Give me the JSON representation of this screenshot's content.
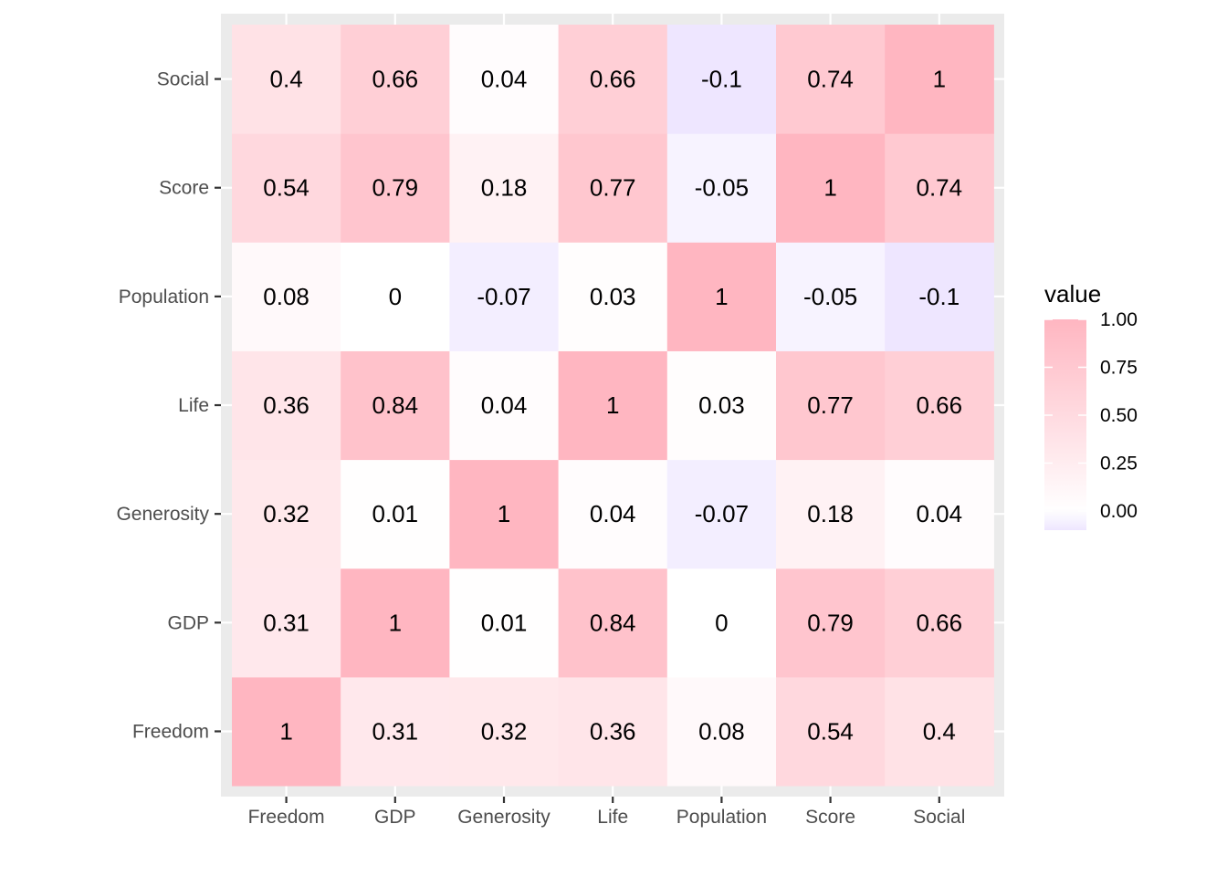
{
  "chart_data": {
    "type": "heatmap",
    "title": "",
    "xlabel": "",
    "ylabel": "",
    "x_categories": [
      "Freedom",
      "GDP",
      "Generosity",
      "Life",
      "Population",
      "Score",
      "Social"
    ],
    "y_categories": [
      "Freedom",
      "GDP",
      "Generosity",
      "Life",
      "Population",
      "Score",
      "Social"
    ],
    "values": [
      [
        1,
        0.31,
        0.32,
        0.36,
        0.08,
        0.54,
        0.4
      ],
      [
        0.31,
        1,
        0.01,
        0.84,
        0,
        0.79,
        0.66
      ],
      [
        0.32,
        0.01,
        1,
        0.04,
        -0.07,
        0.18,
        0.04
      ],
      [
        0.36,
        0.84,
        0.04,
        1,
        0.03,
        0.77,
        0.66
      ],
      [
        0.08,
        0,
        -0.07,
        0.03,
        1,
        -0.05,
        -0.1
      ],
      [
        0.54,
        0.79,
        0.18,
        0.77,
        -0.05,
        1,
        0.74
      ],
      [
        0.4,
        0.66,
        0.04,
        0.66,
        -0.1,
        0.74,
        1
      ]
    ],
    "cell_labels": [
      [
        "1",
        "0.31",
        "0.32",
        "0.36",
        "0.08",
        "0.54",
        "0.4"
      ],
      [
        "0.31",
        "1",
        "0.01",
        "0.84",
        "0",
        "0.79",
        "0.66"
      ],
      [
        "0.32",
        "0.01",
        "1",
        "0.04",
        "-0.07",
        "0.18",
        "0.04"
      ],
      [
        "0.36",
        "0.84",
        "0.04",
        "1",
        "0.03",
        "0.77",
        "0.66"
      ],
      [
        "0.08",
        "0",
        "-0.07",
        "0.03",
        "1",
        "-0.05",
        "-0.1"
      ],
      [
        "0.54",
        "0.79",
        "0.18",
        "0.77",
        "-0.05",
        "1",
        "0.74"
      ],
      [
        "0.4",
        "0.66",
        "0.04",
        "0.66",
        "-0.1",
        "0.74",
        "1"
      ]
    ],
    "color_scale": {
      "low": "#eee6ff",
      "mid": "#ffffff",
      "high": "#ffb6c1",
      "midpoint": 0,
      "limits": [
        -0.1,
        1
      ]
    },
    "legend": {
      "title": "value",
      "placement": "right",
      "breaks": [
        0,
        0.25,
        0.5,
        0.75,
        1
      ],
      "break_labels": [
        "0.00",
        "0.25",
        "0.50",
        "0.75",
        "1.00"
      ]
    },
    "panel_background": "#ebebeb",
    "grid": true
  }
}
